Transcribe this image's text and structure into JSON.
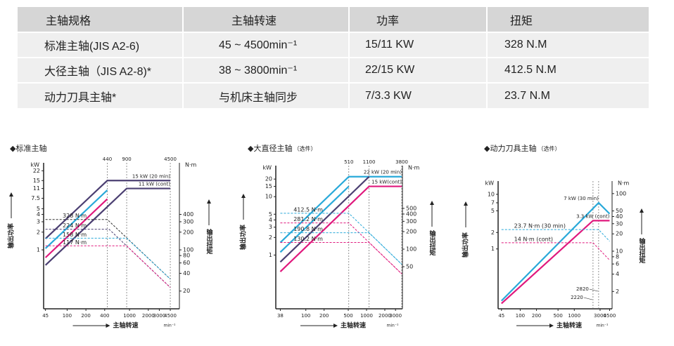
{
  "table": {
    "header": [
      "主轴规格",
      "主轴转速",
      "功率",
      "扭矩"
    ],
    "rows": [
      [
        "标准主轴(JIS A2-6)",
        "45 ~ 4500min⁻¹",
        "15/11 KW",
        "328 N.M"
      ],
      [
        "大径主轴（JIS A2-8)*",
        "38 ~ 3800min⁻¹",
        "22/15 KW",
        "412.5 N.M"
      ],
      [
        "动力刀具主轴*",
        "与机床主轴同步",
        "7/3.3 KW",
        "23.7 N.M"
      ]
    ]
  },
  "charts": [
    {
      "type": "line",
      "title": "◆标准主轴",
      "y_unit": "kW",
      "y2_unit": "N·m",
      "y_label": "输出功率",
      "y2_label": "输出扭矩",
      "x_label": "主轴转速",
      "x_unit": "min⁻¹",
      "log_scale": true,
      "xlim": [
        42,
        6300
      ],
      "xticks": [
        45,
        100,
        200,
        400,
        1000,
        2000,
        3000,
        4500
      ],
      "top_ticks": [
        440,
        900,
        4500
      ],
      "ylim": [
        0.1,
        30
      ],
      "yticks": [
        1,
        2,
        3,
        4,
        5,
        7.5,
        11,
        15,
        22
      ],
      "y2lim": [
        10,
        3000
      ],
      "y2ticks": [
        20,
        40,
        60,
        80,
        100,
        200,
        300,
        400
      ],
      "lines": [
        {
          "color": "#4b3f72",
          "axis": "y",
          "points": [
            [
              45,
              1.55
            ],
            [
              440,
              15
            ],
            [
              4500,
              15
            ]
          ],
          "label": "15 kW (20 min)"
        },
        {
          "color": "#4b3f72",
          "axis": "y",
          "points": [
            [
              45,
              0.55
            ],
            [
              900,
              11
            ],
            [
              4500,
              11
            ]
          ],
          "label": "11 kW (cont)"
        },
        {
          "color": "#29a9d9",
          "axis": "y",
          "points": [
            [
              45,
              1.06
            ],
            [
              440,
              10.3
            ]
          ]
        },
        {
          "color": "#e0197d",
          "axis": "y",
          "points": [
            [
              45,
              0.74
            ],
            [
              440,
              7.3
            ]
          ]
        },
        {
          "color": "#333333",
          "axis": "y2",
          "dashed": true,
          "points": [
            [
              45,
              328
            ],
            [
              440,
              328
            ],
            [
              4500,
              32
            ]
          ],
          "label": "328 N·m"
        },
        {
          "color": "#4b3f72",
          "axis": "y2",
          "dashed": true,
          "points": [
            [
              45,
              224
            ],
            [
              470,
              224
            ],
            [
              4500,
              23
            ]
          ],
          "label": "224 N·m"
        },
        {
          "color": "#29a9d9",
          "axis": "y2",
          "dashed": true,
          "points": [
            [
              45,
              158
            ],
            [
              900,
              158
            ],
            [
              4500,
              32
            ]
          ],
          "label": "158 N·m"
        },
        {
          "color": "#e0197d",
          "axis": "y2",
          "dashed": true,
          "points": [
            [
              45,
              117
            ],
            [
              900,
              117
            ],
            [
              4500,
              23
            ]
          ],
          "label": "117 N·m"
        }
      ]
    },
    {
      "type": "line",
      "title": "◆大直径主轴",
      "note": "（选件）",
      "y_unit": "kW",
      "y2_unit": "N·m",
      "y_label": "输出功率",
      "y2_label": "输出扭矩",
      "x_label": "主轴转速",
      "x_unit": "min⁻¹",
      "log_scale": true,
      "xlim": [
        32,
        3900
      ],
      "xticks": [
        38,
        100,
        200,
        500,
        1000,
        2000,
        3000
      ],
      "top_ticks": [
        510,
        1100,
        3800
      ],
      "ylim": [
        0.12,
        34
      ],
      "yticks": [
        1,
        2,
        3,
        4,
        5,
        10,
        15,
        20
      ],
      "y2lim": [
        9.5,
        2700
      ],
      "y2ticks": [
        50,
        100,
        200,
        300,
        400,
        500
      ],
      "lines": [
        {
          "color": "#29a9d9",
          "axis": "y",
          "points": [
            [
              38,
              1.64
            ],
            [
              510,
              22
            ],
            [
              3800,
              22
            ]
          ],
          "label": "22 kW (20 min)"
        },
        {
          "color": "#29a9d9",
          "axis": "y",
          "points": [
            [
              38,
              1.12
            ],
            [
              510,
              15
            ]
          ]
        },
        {
          "color": "#4b3f72",
          "axis": "y",
          "points": [
            [
              38,
              0.76
            ],
            [
              1100,
              22
            ]
          ]
        },
        {
          "color": "#e0197d",
          "axis": "y",
          "points": [
            [
              38,
              0.52
            ],
            [
              1100,
              15
            ],
            [
              3800,
              15
            ]
          ],
          "label": "15 kW(cont)"
        },
        {
          "color": "#29a9d9",
          "axis": "y2",
          "dashed": true,
          "points": [
            [
              38,
              412.5
            ],
            [
              510,
              412.5
            ],
            [
              3800,
              55
            ]
          ],
          "label": "412.5 N·m"
        },
        {
          "color": "#e0197d",
          "axis": "y2",
          "dashed": true,
          "points": [
            [
              38,
              281.2
            ],
            [
              510,
              281.2
            ],
            [
              3800,
              37.7
            ]
          ],
          "label": "281.2 N·m"
        },
        {
          "color": "#29a9d9",
          "axis": "y2",
          "dashed": true,
          "points": [
            [
              38,
              190.8
            ],
            [
              1100,
              190.8
            ],
            [
              3800,
              55
            ]
          ],
          "label": "190.8 N·m"
        },
        {
          "color": "#e0197d",
          "axis": "y2",
          "dashed": true,
          "points": [
            [
              38,
              130.2
            ],
            [
              1100,
              130.2
            ],
            [
              3800,
              37.7
            ]
          ],
          "label": "130.2 N·m"
        }
      ]
    },
    {
      "type": "line",
      "title": "◆动力刀具主轴",
      "note": "（选件）",
      "y_unit": "kW",
      "y2_unit": "N·m",
      "y_label": "输出功率",
      "y2_label": "输出扭矩",
      "x_label": "主轴转速",
      "x_unit": "min⁻¹",
      "log_scale": true,
      "xlim": [
        39,
        5000
      ],
      "xticks": [
        45,
        100,
        200,
        500,
        1000,
        3000,
        4500
      ],
      "marked_x": [
        2820,
        2220
      ],
      "ylim": [
        0.08,
        17.5
      ],
      "yticks": [
        1,
        2,
        5,
        7,
        10
      ],
      "y2lim": [
        1,
        165
      ],
      "y2ticks": [
        2,
        4,
        6,
        8,
        10,
        20,
        30,
        40,
        50,
        100
      ],
      "lines": [
        {
          "color": "#29a9d9",
          "axis": "y",
          "points": [
            [
              45,
              0.112
            ],
            [
              2820,
              7
            ],
            [
              4500,
              4.4
            ]
          ],
          "label": "7 kW (30 min)"
        },
        {
          "color": "#e0197d",
          "axis": "y",
          "points": [
            [
              45,
              0.1
            ],
            [
              2220,
              3.3
            ],
            [
              4500,
              3.3
            ]
          ],
          "label": "3.3 kW (cont)"
        },
        {
          "color": "#29a9d9",
          "axis": "y2",
          "dashed": true,
          "points": [
            [
              45,
              23.7
            ],
            [
              2820,
              23.7
            ],
            [
              4500,
              14.9
            ]
          ],
          "label": "23.7 N·m (30 min)"
        },
        {
          "color": "#e0197d",
          "axis": "y2",
          "dashed": true,
          "points": [
            [
              45,
              14
            ],
            [
              2220,
              14
            ],
            [
              4500,
              7
            ]
          ],
          "label": "14 N·m (cont)"
        }
      ]
    }
  ]
}
